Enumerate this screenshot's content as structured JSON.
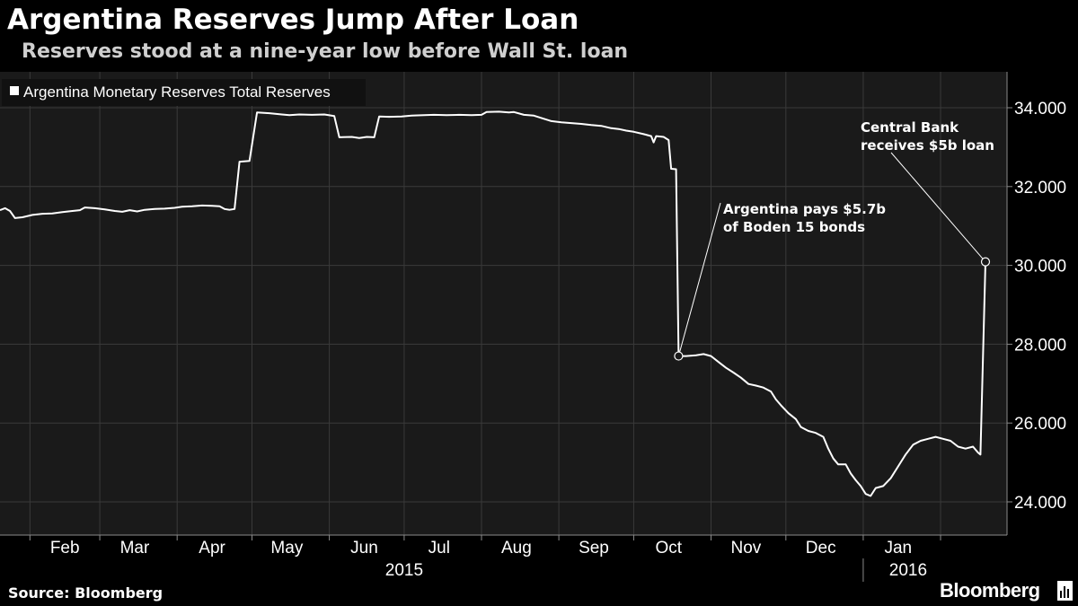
{
  "title": "Argentina Reserves Jump After Loan",
  "subtitle": "Reserves stood at a nine-year low before Wall St. loan",
  "source": "Source: Bloomberg",
  "brand": "Bloomberg",
  "colors": {
    "background": "#000000",
    "plot_background": "#1a1a1a",
    "line": "#ffffff",
    "grid": "#3a3a3a",
    "text": "#ffffff",
    "subtitle": "#cfcfcf"
  },
  "chart_data": {
    "type": "line",
    "legend": "Argentina Monetary Reserves Total Reserves",
    "legend_position": "top-left",
    "ylim": [
      23400,
      35200
    ],
    "yticks": [
      24000,
      26000,
      28000,
      30000,
      32000,
      34000
    ],
    "ytick_labels": [
      "24.000",
      "26.000",
      "28.000",
      "30.000",
      "32.000",
      "34.000"
    ],
    "y_axis_side": "right",
    "grid": true,
    "x_range": [
      "2015-01-20",
      "2016-02-12"
    ],
    "x_month_labels": [
      {
        "label": "Feb",
        "date": "2015-02-15"
      },
      {
        "label": "Mar",
        "date": "2015-03-15"
      },
      {
        "label": "Apr",
        "date": "2015-04-15"
      },
      {
        "label": "May",
        "date": "2015-05-15"
      },
      {
        "label": "Jun",
        "date": "2015-06-15"
      },
      {
        "label": "Jul",
        "date": "2015-07-15"
      },
      {
        "label": "Aug",
        "date": "2015-08-15"
      },
      {
        "label": "Sep",
        "date": "2015-09-15"
      },
      {
        "label": "Oct",
        "date": "2015-10-15"
      },
      {
        "label": "Nov",
        "date": "2015-11-15"
      },
      {
        "label": "Dec",
        "date": "2015-12-15"
      },
      {
        "label": "Jan",
        "date": "2016-01-15"
      }
    ],
    "x_gridlines": [
      "2015-02-01",
      "2015-03-01",
      "2015-04-01",
      "2015-05-01",
      "2015-06-01",
      "2015-07-01",
      "2015-08-01",
      "2015-09-01",
      "2015-10-01",
      "2015-11-01",
      "2015-12-01",
      "2016-01-01",
      "2016-02-01"
    ],
    "x_year_labels": [
      {
        "label": "2015",
        "date": "2015-07-01"
      },
      {
        "label": "2016",
        "date": "2016-01-19"
      }
    ],
    "year_divider": "2016-01-01",
    "series": [
      {
        "name": "Argentina Monetary Reserves Total Reserves",
        "points": [
          [
            "2015-01-20",
            31400
          ],
          [
            "2015-01-22",
            31450
          ],
          [
            "2015-01-24",
            31380
          ],
          [
            "2015-01-26",
            31200
          ],
          [
            "2015-01-29",
            31220
          ],
          [
            "2015-02-02",
            31280
          ],
          [
            "2015-02-06",
            31310
          ],
          [
            "2015-02-10",
            31320
          ],
          [
            "2015-02-14",
            31350
          ],
          [
            "2015-02-18",
            31380
          ],
          [
            "2015-02-21",
            31400
          ],
          [
            "2015-02-23",
            31470
          ],
          [
            "2015-02-27",
            31450
          ],
          [
            "2015-03-03",
            31420
          ],
          [
            "2015-03-07",
            31380
          ],
          [
            "2015-03-10",
            31360
          ],
          [
            "2015-03-13",
            31400
          ],
          [
            "2015-03-16",
            31370
          ],
          [
            "2015-03-19",
            31410
          ],
          [
            "2015-03-23",
            31430
          ],
          [
            "2015-03-27",
            31440
          ],
          [
            "2015-03-31",
            31460
          ],
          [
            "2015-04-03",
            31490
          ],
          [
            "2015-04-07",
            31500
          ],
          [
            "2015-04-11",
            31520
          ],
          [
            "2015-04-15",
            31510
          ],
          [
            "2015-04-18",
            31500
          ],
          [
            "2015-04-20",
            31430
          ],
          [
            "2015-04-22",
            31410
          ],
          [
            "2015-04-24",
            31430
          ],
          [
            "2015-04-26",
            32630
          ],
          [
            "2015-04-30",
            32650
          ],
          [
            "2015-05-03",
            33880
          ],
          [
            "2015-05-08",
            33860
          ],
          [
            "2015-05-13",
            33830
          ],
          [
            "2015-05-16",
            33810
          ],
          [
            "2015-05-20",
            33830
          ],
          [
            "2015-05-25",
            33820
          ],
          [
            "2015-05-30",
            33830
          ],
          [
            "2015-06-03",
            33790
          ],
          [
            "2015-06-05",
            33250
          ],
          [
            "2015-06-10",
            33260
          ],
          [
            "2015-06-13",
            33230
          ],
          [
            "2015-06-16",
            33260
          ],
          [
            "2015-06-19",
            33250
          ],
          [
            "2015-06-21",
            33780
          ],
          [
            "2015-06-25",
            33770
          ],
          [
            "2015-06-30",
            33780
          ],
          [
            "2015-07-04",
            33800
          ],
          [
            "2015-07-09",
            33810
          ],
          [
            "2015-07-13",
            33820
          ],
          [
            "2015-07-18",
            33810
          ],
          [
            "2015-07-23",
            33820
          ],
          [
            "2015-07-28",
            33810
          ],
          [
            "2015-08-01",
            33820
          ],
          [
            "2015-08-03",
            33890
          ],
          [
            "2015-08-08",
            33900
          ],
          [
            "2015-08-12",
            33880
          ],
          [
            "2015-08-14",
            33890
          ],
          [
            "2015-08-18",
            33820
          ],
          [
            "2015-08-22",
            33800
          ],
          [
            "2015-08-26",
            33720
          ],
          [
            "2015-08-29",
            33660
          ],
          [
            "2015-09-02",
            33630
          ],
          [
            "2015-09-06",
            33610
          ],
          [
            "2015-09-10",
            33590
          ],
          [
            "2015-09-14",
            33560
          ],
          [
            "2015-09-18",
            33540
          ],
          [
            "2015-09-22",
            33480
          ],
          [
            "2015-09-25",
            33460
          ],
          [
            "2015-09-28",
            33420
          ],
          [
            "2015-10-01",
            33390
          ],
          [
            "2015-10-05",
            33330
          ],
          [
            "2015-10-08",
            33280
          ],
          [
            "2015-10-09",
            33120
          ],
          [
            "2015-10-10",
            33280
          ],
          [
            "2015-10-13",
            33260
          ],
          [
            "2015-10-15",
            33180
          ],
          [
            "2015-10-16",
            32450
          ],
          [
            "2015-10-18",
            32440
          ],
          [
            "2015-10-19",
            27700
          ],
          [
            "2015-10-22",
            27700
          ],
          [
            "2015-10-26",
            27720
          ],
          [
            "2015-10-29",
            27750
          ],
          [
            "2015-11-01",
            27700
          ],
          [
            "2015-11-04",
            27550
          ],
          [
            "2015-11-07",
            27400
          ],
          [
            "2015-11-10",
            27280
          ],
          [
            "2015-11-13",
            27150
          ],
          [
            "2015-11-16",
            26990
          ],
          [
            "2015-11-19",
            26950
          ],
          [
            "2015-11-22",
            26900
          ],
          [
            "2015-11-25",
            26800
          ],
          [
            "2015-11-27",
            26600
          ],
          [
            "2015-11-29",
            26450
          ],
          [
            "2015-12-02",
            26250
          ],
          [
            "2015-12-05",
            26100
          ],
          [
            "2015-12-07",
            25900
          ],
          [
            "2015-12-10",
            25800
          ],
          [
            "2015-12-13",
            25750
          ],
          [
            "2015-12-16",
            25650
          ],
          [
            "2015-12-18",
            25350
          ],
          [
            "2015-12-20",
            25100
          ],
          [
            "2015-12-22",
            24950
          ],
          [
            "2015-12-25",
            24950
          ],
          [
            "2015-12-27",
            24720
          ],
          [
            "2015-12-29",
            24550
          ],
          [
            "2015-12-31",
            24400
          ],
          [
            "2016-01-02",
            24200
          ],
          [
            "2016-01-04",
            24150
          ],
          [
            "2016-01-06",
            24350
          ],
          [
            "2016-01-09",
            24400
          ],
          [
            "2016-01-12",
            24600
          ],
          [
            "2016-01-15",
            24900
          ],
          [
            "2016-01-18",
            25200
          ],
          [
            "2016-01-21",
            25450
          ],
          [
            "2016-01-24",
            25550
          ],
          [
            "2016-01-27",
            25600
          ],
          [
            "2016-01-30",
            25650
          ],
          [
            "2016-02-02",
            25600
          ],
          [
            "2016-02-05",
            25550
          ],
          [
            "2016-02-08",
            25400
          ],
          [
            "2016-02-11",
            25350
          ],
          [
            "2016-02-14",
            25400
          ],
          [
            "2016-02-16",
            25250
          ],
          [
            "2016-02-17",
            25200
          ],
          [
            "2016-02-19",
            30090
          ]
        ]
      }
    ],
    "annotations": [
      {
        "text_lines": [
          "Argentina pays $5.7b",
          "of Boden 15 bonds"
        ],
        "point": [
          "2015-10-19",
          27700
        ]
      },
      {
        "text_lines": [
          "Central Bank",
          "receives $5b loan"
        ],
        "point": [
          "2016-02-19",
          30090
        ]
      }
    ]
  }
}
